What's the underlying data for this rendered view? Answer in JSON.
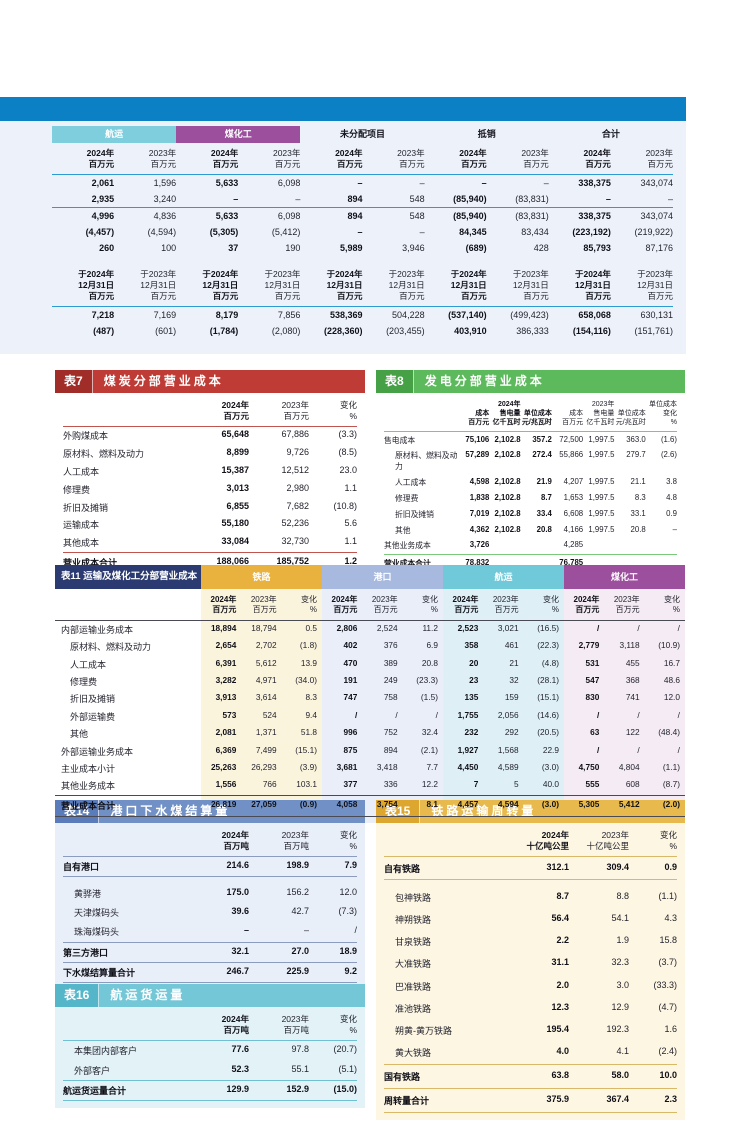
{
  "theme": {
    "banner_blue": "#0c80c5",
    "panel_blue_bg": "#edf2fa",
    "shipping_teal": "#7fcedd",
    "coal_chem_purple": "#9c4f9c",
    "table7_red": "#bf3b35",
    "table8_green": "#5cb95c",
    "table11_navy": "#2b3a70",
    "rail_gold": "#e9b23e",
    "port_blue": "#a7b9de",
    "table14_blue": "#7191c6",
    "table15_gold": "#e8ba4e",
    "table16_cyan": "#74c7d7"
  },
  "top_table": {
    "groups": [
      "航运",
      "煤化工",
      "未分配项目",
      "抵销",
      "合计"
    ],
    "sub2024": "2024年\n百万元",
    "sub2023": "2023年\n百万元",
    "date2024": "于2024年\n12月31日\n百万元",
    "date2023": "于2023年\n12月31日\n百万元",
    "rows_flow": [
      {
        "cells": [
          "2,061",
          "1,596",
          "5,633",
          "6,098",
          "–",
          "–",
          "–",
          "–",
          "338,375",
          "343,074"
        ]
      },
      {
        "cells": [
          "2,935",
          "3,240",
          "–",
          "–",
          "894",
          "548",
          "(85,940)",
          "(83,831)",
          "–",
          "–"
        ],
        "cls": "rule-below"
      },
      {
        "cells": [
          "4,996",
          "4,836",
          "5,633",
          "6,098",
          "894",
          "548",
          "(85,940)",
          "(83,831)",
          "338,375",
          "343,074"
        ]
      },
      {
        "cells": [
          "(4,457)",
          "(4,594)",
          "(5,305)",
          "(5,412)",
          "–",
          "–",
          "84,345",
          "83,434",
          "(223,192)",
          "(219,922)"
        ]
      },
      {
        "cells": [
          "260",
          "100",
          "37",
          "190",
          "5,989",
          "3,946",
          "(689)",
          "428",
          "85,793",
          "87,176"
        ]
      }
    ],
    "rows_balance": [
      {
        "cells": [
          "7,218",
          "7,169",
          "8,179",
          "7,856",
          "538,369",
          "504,228",
          "(537,140)",
          "(499,423)",
          "658,068",
          "630,131"
        ]
      },
      {
        "cells": [
          "(487)",
          "(601)",
          "(1,784)",
          "(2,080)",
          "(228,360)",
          "(203,455)",
          "403,910",
          "386,333",
          "(154,116)",
          "(151,761)"
        ]
      }
    ]
  },
  "table7": {
    "tag": "表7",
    "title": "煤炭分部营业成本",
    "headers": [
      "2024年\n百万元",
      "2023年\n百万元",
      "变化\n%"
    ],
    "rows": [
      {
        "label": "外购煤成本",
        "cells": [
          "65,648",
          "67,886",
          "(3.3)"
        ]
      },
      {
        "label": "原材料、燃料及动力",
        "cells": [
          "8,899",
          "9,726",
          "(8.5)"
        ]
      },
      {
        "label": "人工成本",
        "cells": [
          "15,387",
          "12,512",
          "23.0"
        ]
      },
      {
        "label": "修理费",
        "cells": [
          "3,013",
          "2,980",
          "1.1"
        ]
      },
      {
        "label": "折旧及摊销",
        "cells": [
          "6,855",
          "7,682",
          "(10.8)"
        ]
      },
      {
        "label": "运输成本",
        "cells": [
          "55,180",
          "52,236",
          "5.6"
        ]
      },
      {
        "label": "其他成本",
        "cells": [
          "33,084",
          "32,730",
          "1.1"
        ]
      }
    ],
    "total": {
      "label": "营业成本合计",
      "cells": [
        "188,066",
        "185,752",
        "1.2"
      ]
    }
  },
  "table8": {
    "tag": "表8",
    "title": "发电分部营业成本",
    "headers": [
      "成本\n百万元",
      "2024年\n售电量\n亿千瓦时",
      "单位成本\n元/兆瓦时",
      "成本\n百万元",
      "2023年\n售电量\n亿千瓦时",
      "单位成本\n元/兆瓦时",
      "单位成本变化\n%"
    ],
    "rows": [
      {
        "label": "售电成本",
        "cells": [
          "75,106",
          "2,102.8",
          "357.2",
          "72,500",
          "1,997.5",
          "363.0",
          "(1.6)"
        ]
      },
      {
        "label": "原材料、燃料及动力",
        "cls": "indent",
        "cells": [
          "57,289",
          "2,102.8",
          "272.4",
          "55,866",
          "1,997.5",
          "279.7",
          "(2.6)"
        ]
      },
      {
        "label": "人工成本",
        "cls": "indent",
        "cells": [
          "4,598",
          "2,102.8",
          "21.9",
          "4,207",
          "1,997.5",
          "21.1",
          "3.8"
        ]
      },
      {
        "label": "修理费",
        "cls": "indent",
        "cells": [
          "1,838",
          "2,102.8",
          "8.7",
          "1,653",
          "1,997.5",
          "8.3",
          "4.8"
        ]
      },
      {
        "label": "折旧及摊销",
        "cls": "indent",
        "cells": [
          "7,019",
          "2,102.8",
          "33.4",
          "6,608",
          "1,997.5",
          "33.1",
          "0.9"
        ]
      },
      {
        "label": "其他",
        "cls": "indent",
        "cells": [
          "4,362",
          "2,102.8",
          "20.8",
          "4,166",
          "1,997.5",
          "20.8",
          "–"
        ]
      },
      {
        "label": "其他业务成本",
        "cells": [
          "3,726",
          "",
          "",
          "4,285",
          "",
          "",
          ""
        ]
      }
    ],
    "total": {
      "label": "营业成本合计",
      "cells": [
        "78,832",
        "",
        "",
        "76,785",
        "",
        "",
        ""
      ]
    }
  },
  "table11": {
    "tag": "表11",
    "title": "运输及煤化工分部营业成本",
    "title_full": "表11  运输及煤化工分部营业成本",
    "groups": [
      "铁路",
      "港口",
      "航运",
      "煤化工"
    ],
    "sub2024": "2024年\n百万元",
    "sub2023": "2023年\n百万元",
    "subchg": "变化\n%",
    "rows": [
      {
        "label": "内部运输业务成本",
        "cells": [
          "18,894",
          "18,794",
          "0.5",
          "2,806",
          "2,524",
          "11.2",
          "2,523",
          "3,021",
          "(16.5)",
          "/",
          "/",
          "/"
        ]
      },
      {
        "label": "原材料、燃料及动力",
        "cls": "indent",
        "cells": [
          "2,654",
          "2,702",
          "(1.8)",
          "402",
          "376",
          "6.9",
          "358",
          "461",
          "(22.3)",
          "2,779",
          "3,118",
          "(10.9)"
        ]
      },
      {
        "label": "人工成本",
        "cls": "indent",
        "cells": [
          "6,391",
          "5,612",
          "13.9",
          "470",
          "389",
          "20.8",
          "20",
          "21",
          "(4.8)",
          "531",
          "455",
          "16.7"
        ]
      },
      {
        "label": "修理费",
        "cls": "indent",
        "cells": [
          "3,282",
          "4,971",
          "(34.0)",
          "191",
          "249",
          "(23.3)",
          "23",
          "32",
          "(28.1)",
          "547",
          "368",
          "48.6"
        ]
      },
      {
        "label": "折旧及摊销",
        "cls": "indent",
        "cells": [
          "3,913",
          "3,614",
          "8.3",
          "747",
          "758",
          "(1.5)",
          "135",
          "159",
          "(15.1)",
          "830",
          "741",
          "12.0"
        ]
      },
      {
        "label": "外部运输费",
        "cls": "indent",
        "cells": [
          "573",
          "524",
          "9.4",
          "/",
          "/",
          "/",
          "1,755",
          "2,056",
          "(14.6)",
          "/",
          "/",
          "/"
        ]
      },
      {
        "label": "其他",
        "cls": "indent",
        "cells": [
          "2,081",
          "1,371",
          "51.8",
          "996",
          "752",
          "32.4",
          "232",
          "292",
          "(20.5)",
          "63",
          "122",
          "(48.4)"
        ]
      },
      {
        "label": "外部运输业务成本",
        "cells": [
          "6,369",
          "7,499",
          "(15.1)",
          "875",
          "894",
          "(2.1)",
          "1,927",
          "1,568",
          "22.9",
          "/",
          "/",
          "/"
        ]
      },
      {
        "label": "主业成本小计",
        "cells": [
          "25,263",
          "26,293",
          "(3.9)",
          "3,681",
          "3,418",
          "7.7",
          "4,450",
          "4,589",
          "(3.0)",
          "4,750",
          "4,804",
          "(1.1)"
        ]
      },
      {
        "label": "其他业务成本",
        "cells": [
          "1,556",
          "766",
          "103.1",
          "377",
          "336",
          "12.2",
          "7",
          "5",
          "40.0",
          "555",
          "608",
          "(8.7)"
        ]
      }
    ],
    "total": {
      "label": "营业成本合计",
      "cells": [
        "26,819",
        "27,059",
        "(0.9)",
        "4,058",
        "3,754",
        "8.1",
        "4,457",
        "4,594",
        "(3.0)",
        "5,305",
        "5,412",
        "(2.0)"
      ]
    }
  },
  "table14": {
    "tag": "表14",
    "title": "港口下水煤结算量",
    "headers": [
      "2024年\n百万吨",
      "2023年\n百万吨",
      "变化\n%"
    ],
    "rows": [
      {
        "label": "自有港口",
        "cls": "bold rule-below",
        "cells": [
          "214.6",
          "198.9",
          "7.9"
        ]
      },
      {
        "label": "黄骅港",
        "cls": "indent gap-above",
        "cells": [
          "175.0",
          "156.2",
          "12.0"
        ]
      },
      {
        "label": "天津煤码头",
        "cls": "indent",
        "cells": [
          "39.6",
          "42.7",
          "(7.3)"
        ]
      },
      {
        "label": "珠海煤码头",
        "cls": "indent",
        "cells": [
          "–",
          "–",
          "/"
        ]
      },
      {
        "label": "第三方港口",
        "cls": "bold rule-above",
        "cells": [
          "32.1",
          "27.0",
          "18.9"
        ]
      },
      {
        "label": "下水煤结算量合计",
        "cls": "bold rule-above rule-below total",
        "cells": [
          "246.7",
          "225.9",
          "9.2"
        ]
      }
    ]
  },
  "table15": {
    "tag": "表15",
    "title": "铁路运输周转量",
    "headers": [
      "2024年\n十亿吨公里",
      "2023年\n十亿吨公里",
      "变化\n%"
    ],
    "rows": [
      {
        "label": "自有铁路",
        "cls": "bold rule-below",
        "cells": [
          "312.1",
          "309.4",
          "0.9"
        ]
      },
      {
        "label": "包神铁路",
        "cls": "indent gap-above",
        "cells": [
          "8.7",
          "8.8",
          "(1.1)"
        ]
      },
      {
        "label": "神朔铁路",
        "cls": "indent",
        "cells": [
          "56.4",
          "54.1",
          "4.3"
        ]
      },
      {
        "label": "甘泉铁路",
        "cls": "indent",
        "cells": [
          "2.2",
          "1.9",
          "15.8"
        ]
      },
      {
        "label": "大准铁路",
        "cls": "indent",
        "cells": [
          "31.1",
          "32.3",
          "(3.7)"
        ]
      },
      {
        "label": "巴准铁路",
        "cls": "indent",
        "cells": [
          "2.0",
          "3.0",
          "(33.3)"
        ]
      },
      {
        "label": "准池铁路",
        "cls": "indent",
        "cells": [
          "12.3",
          "12.9",
          "(4.7)"
        ]
      },
      {
        "label": "朔黄-黄万铁路",
        "cls": "indent",
        "cells": [
          "195.4",
          "192.3",
          "1.6"
        ]
      },
      {
        "label": "黄大铁路",
        "cls": "indent",
        "cells": [
          "4.0",
          "4.1",
          "(2.4)"
        ]
      },
      {
        "label": "国有铁路",
        "cls": "bold rule-above total",
        "cells": [
          "63.8",
          "58.0",
          "10.0"
        ]
      },
      {
        "label": "周转量合计",
        "cls": "bold rule-above rule-below total",
        "cells": [
          "375.9",
          "367.4",
          "2.3"
        ]
      }
    ]
  },
  "table16": {
    "tag": "表16",
    "title": "航运货运量",
    "headers": [
      "2024年\n百万吨",
      "2023年\n百万吨",
      "变化\n%"
    ],
    "rows": [
      {
        "label": "本集团内部客户",
        "cls": "indent",
        "cells": [
          "77.6",
          "97.8",
          "(20.7)"
        ]
      },
      {
        "label": "外部客户",
        "cls": "indent",
        "cells": [
          "52.3",
          "55.1",
          "(5.1)"
        ]
      },
      {
        "label": "航运货运量合计",
        "cls": "bold rule-above rule-below total",
        "cells": [
          "129.9",
          "152.9",
          "(15.0)"
        ]
      }
    ]
  }
}
